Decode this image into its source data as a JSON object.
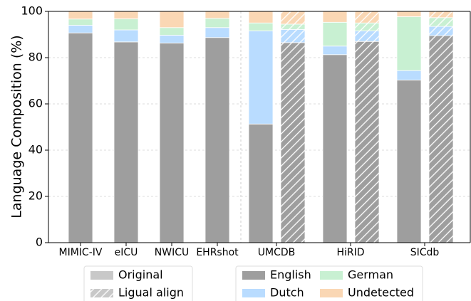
{
  "chart_data": {
    "type": "stacked_bar",
    "ylabel": "Language Composition (%)",
    "categories": [
      "MIMIC-IV",
      "eICU",
      "NWICU",
      "EHRshot",
      "UMCDB",
      "HiRID",
      "SICdb"
    ],
    "ylim": [
      0,
      100
    ],
    "yticks": [
      0,
      20,
      40,
      60,
      80,
      100
    ],
    "grid": true,
    "variants": [
      {
        "name": "Original",
        "hatch": false,
        "color": "#c8c8c8"
      },
      {
        "name": "Ligual align",
        "hatch": true,
        "color": "#c8c8c8"
      }
    ],
    "series": [
      {
        "name": "English",
        "color": "#9e9e9e",
        "values": [
          90.7,
          86.8,
          86.3,
          88.7,
          51.3,
          81.3,
          70.3
        ],
        "aligned_values": [
          null,
          null,
          null,
          null,
          86.5,
          87.0,
          89.5
        ]
      },
      {
        "name": "Dutch",
        "color": "#b9dcff",
        "values": [
          3.3,
          5.2,
          3.4,
          4.3,
          40.3,
          3.7,
          4.1
        ],
        "aligned_values": [
          null,
          null,
          null,
          null,
          5.7,
          4.6,
          4.0
        ]
      },
      {
        "name": "German",
        "color": "#c8f0d2",
        "values": [
          2.7,
          4.8,
          3.3,
          4.0,
          3.4,
          10.3,
          23.3
        ],
        "aligned_values": [
          null,
          null,
          null,
          null,
          2.3,
          3.4,
          3.8
        ]
      },
      {
        "name": "Undetected",
        "color": "#fad7b4",
        "values": [
          3.3,
          3.2,
          7.0,
          3.0,
          5.0,
          4.7,
          2.3
        ],
        "aligned_values": [
          null,
          null,
          null,
          null,
          5.5,
          5.0,
          2.7
        ]
      }
    ]
  }
}
